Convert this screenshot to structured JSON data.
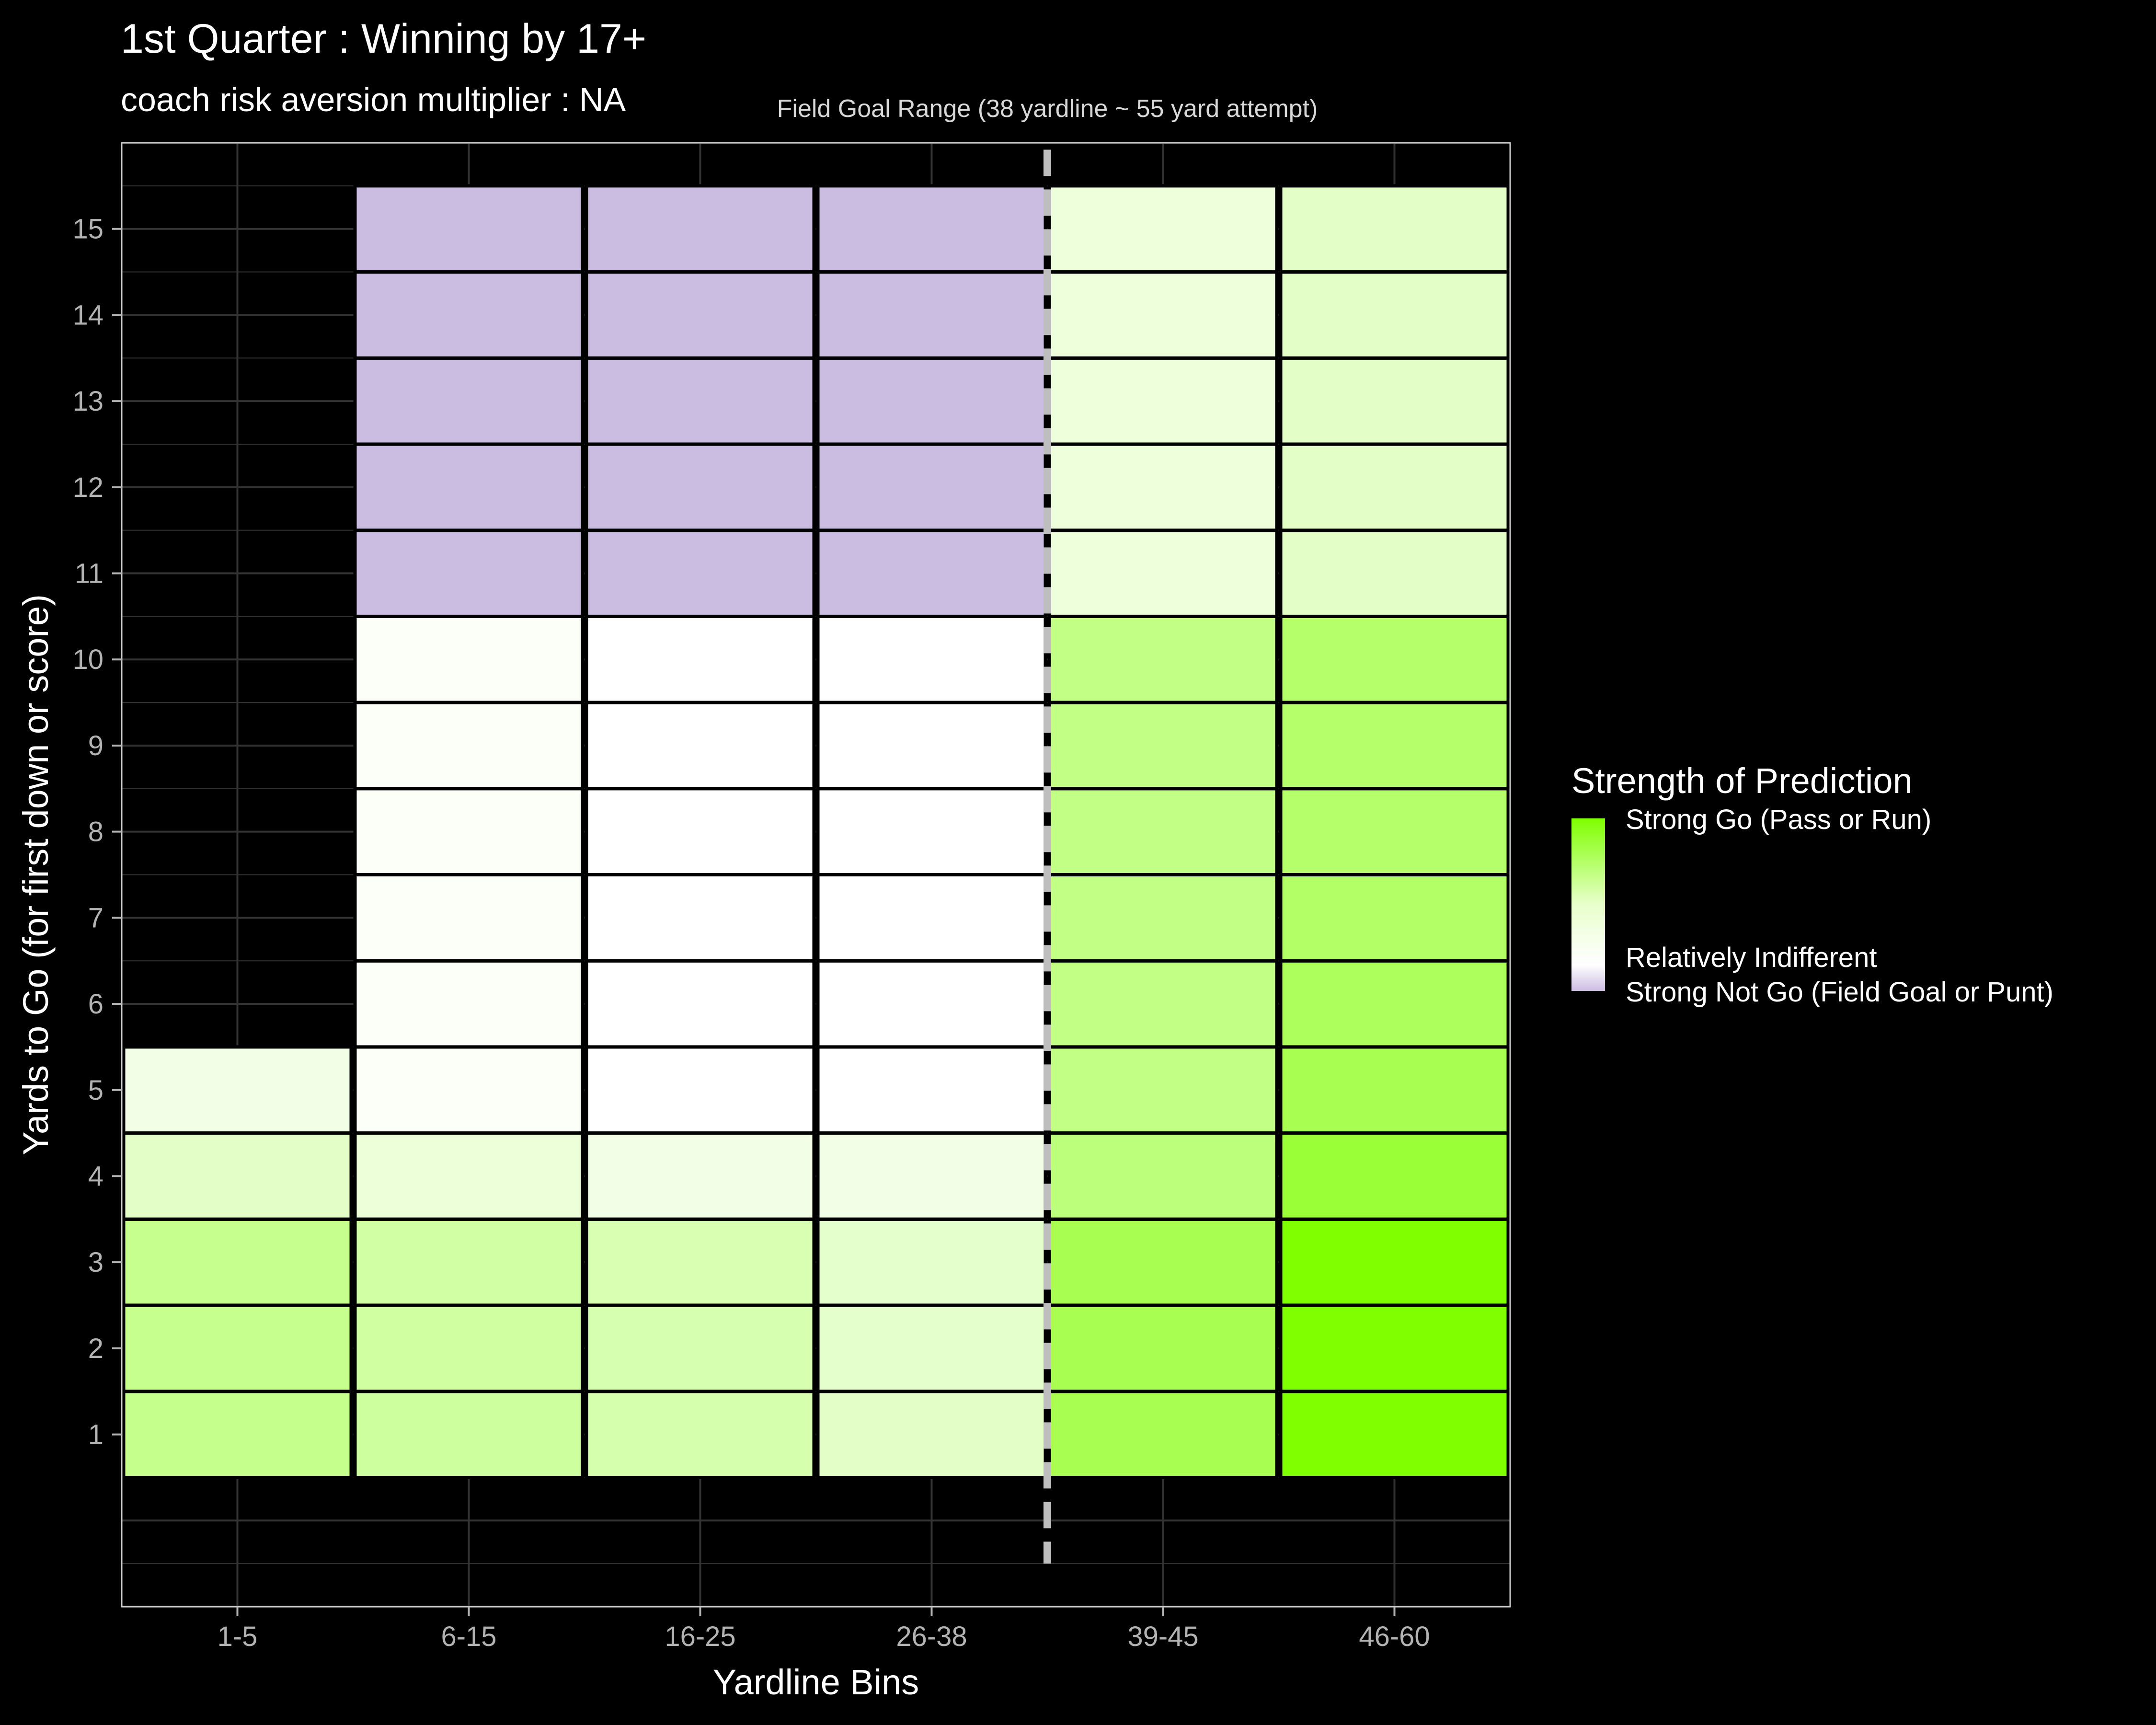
{
  "chart_data": {
    "type": "heatmap",
    "title": "1st Quarter : Winning by 17+",
    "subtitle": "coach risk aversion multiplier : NA",
    "xlabel": "Yardline Bins",
    "ylabel": "Yards to Go (for first down or score)",
    "x_categories": [
      "1-5",
      "6-15",
      "16-25",
      "26-38",
      "39-45",
      "46-60"
    ],
    "y_values": [
      1,
      2,
      3,
      4,
      5,
      6,
      7,
      8,
      9,
      10,
      11,
      12,
      13,
      14,
      15
    ],
    "y_range": [
      -1,
      16
    ],
    "grid": true,
    "annotation": {
      "text": "Field Goal Range (38 yardline ~ 55 yard attempt)",
      "boundary_between": [
        "26-38",
        "39-45"
      ],
      "line_color": "#bebebe"
    },
    "colors": {
      "background": "#000000",
      "strong_go": "#7fff00",
      "indifferent": "#ffffff",
      "strong_not_go": "#cbbde2",
      "gridline": "#333333",
      "panel_border": "#cccccc"
    },
    "legend": {
      "title": "Strength of Prediction",
      "placement": "right",
      "labels": [
        "Strong Go (Pass or Run)",
        "Relatively Indifferent",
        "Strong Not Go (Field Goal or Punt)"
      ]
    },
    "scale_note": "values from -1 (strong not go) to 1 (strong go); 0 = relatively indifferent",
    "cells": [
      {
        "x": "1-5",
        "values": [
          0.45,
          0.44,
          0.44,
          0.22,
          0.1,
          null,
          null,
          null,
          null,
          null,
          null,
          null,
          null,
          null,
          null
        ]
      },
      {
        "x": "6-15",
        "values": [
          0.38,
          0.37,
          0.36,
          0.15,
          0.03,
          0.03,
          0.03,
          0.03,
          0.03,
          0.03,
          -1,
          -1,
          -1,
          -1,
          -1
        ]
      },
      {
        "x": "16-25",
        "values": [
          0.32,
          0.31,
          0.3,
          0.1,
          0.0,
          0.0,
          0.0,
          0.0,
          0.0,
          0.0,
          -1,
          -1,
          -1,
          -1,
          -1
        ]
      },
      {
        "x": "26-38",
        "values": [
          0.22,
          0.2,
          0.2,
          0.1,
          0.0,
          0.0,
          0.0,
          0.0,
          0.0,
          0.0,
          -1,
          -1,
          -1,
          -1,
          -1
        ]
      },
      {
        "x": "39-45",
        "values": [
          0.68,
          0.68,
          0.68,
          0.52,
          0.48,
          0.48,
          0.48,
          0.48,
          0.48,
          0.48,
          0.14,
          0.14,
          0.14,
          0.14,
          0.14
        ]
      },
      {
        "x": "46-60",
        "values": [
          1.0,
          1.0,
          1.0,
          0.78,
          0.68,
          0.64,
          0.6,
          0.58,
          0.58,
          0.58,
          0.22,
          0.22,
          0.22,
          0.22,
          0.22
        ]
      }
    ]
  }
}
